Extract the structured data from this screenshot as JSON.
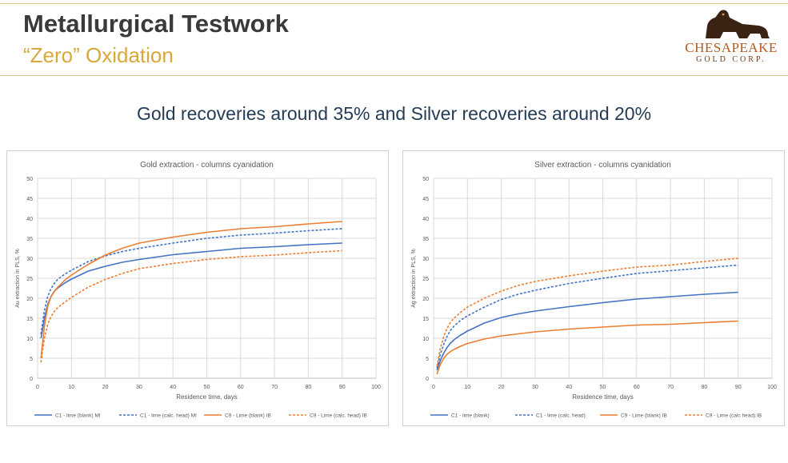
{
  "header": {
    "title": "Metallurgical Testwork",
    "subtitle": "“Zero” Oxidation"
  },
  "logo": {
    "name": "CHESAPEAKE",
    "corp": "GOLD CORP.",
    "icon": "dog-icon",
    "text_color": "#b25a1e"
  },
  "headline": "Gold recoveries around 35% and Silver recoveries around 20%",
  "chart_data": [
    {
      "type": "line",
      "title": "Gold extraction - columns cyanidation",
      "xlabel": "Residence time, days",
      "ylabel": "Au extraction in PLS, %",
      "xlim": [
        0,
        100
      ],
      "ylim": [
        0,
        50
      ],
      "xticks": [
        "0",
        "10",
        "20",
        "30",
        "40",
        "50",
        "60",
        "70",
        "80",
        "90",
        "100"
      ],
      "yticks": [
        "0",
        "5",
        "10",
        "15",
        "20",
        "25",
        "30",
        "35",
        "40",
        "45",
        "50"
      ],
      "grid": true,
      "legend_position": "bottom",
      "series": [
        {
          "name": "C1 - lime (blank) MI",
          "color": "#4472c4",
          "dash": false,
          "x": [
            1,
            2,
            3,
            4,
            5,
            6,
            8,
            10,
            15,
            20,
            25,
            30,
            40,
            50,
            60,
            70,
            80,
            90
          ],
          "y": [
            10,
            15,
            18.5,
            20.5,
            21.8,
            22.6,
            23.8,
            24.8,
            26.8,
            28,
            29,
            29.7,
            30.9,
            31.7,
            32.5,
            32.9,
            33.4,
            33.8
          ]
        },
        {
          "name": "C1 - lime (calc. head) MI",
          "color": "#4472c4",
          "dash": true,
          "x": [
            1,
            2,
            3,
            4,
            5,
            6,
            8,
            10,
            15,
            20,
            25,
            30,
            40,
            50,
            60,
            70,
            80,
            90
          ],
          "y": [
            11,
            17,
            20.5,
            22.5,
            23.8,
            24.8,
            26,
            27,
            29.2,
            30.6,
            31.7,
            32.5,
            33.8,
            35,
            35.8,
            36.3,
            36.9,
            37.4
          ]
        },
        {
          "name": "C9 - Lime (blank) IB",
          "color": "#ed7d31",
          "dash": false,
          "x": [
            1,
            2,
            3,
            4,
            5,
            6,
            8,
            10,
            15,
            20,
            25,
            30,
            40,
            50,
            60,
            70,
            80,
            90
          ],
          "y": [
            5,
            13,
            18,
            20.5,
            21.8,
            22.8,
            24.5,
            25.8,
            28.5,
            30.8,
            32.5,
            33.8,
            35.3,
            36.5,
            37.4,
            37.9,
            38.6,
            39.2
          ]
        },
        {
          "name": "C9 - Lime (calc. head) IB",
          "color": "#ed7d31",
          "dash": true,
          "x": [
            1,
            2,
            3,
            4,
            5,
            6,
            8,
            10,
            15,
            20,
            25,
            30,
            40,
            50,
            60,
            70,
            80,
            90
          ],
          "y": [
            4,
            10,
            13.5,
            15.5,
            16.8,
            17.7,
            19,
            20.2,
            22.8,
            24.7,
            26.2,
            27.4,
            28.7,
            29.7,
            30.4,
            30.8,
            31.4,
            31.9
          ]
        }
      ]
    },
    {
      "type": "line",
      "title": "Silver extraction - columns cyanidation",
      "xlabel": "Residence time, days",
      "ylabel": "Ag extraction in PLS, %",
      "xlim": [
        0,
        100
      ],
      "ylim": [
        0,
        50
      ],
      "xticks": [
        "0",
        "10",
        "20",
        "30",
        "40",
        "50",
        "60",
        "70",
        "80",
        "90",
        "100"
      ],
      "yticks": [
        "0",
        "5",
        "10",
        "15",
        "20",
        "25",
        "30",
        "35",
        "40",
        "45",
        "50"
      ],
      "grid": true,
      "legend_position": "bottom",
      "series": [
        {
          "name": "C1 - lime (blank)",
          "color": "#4472c4",
          "dash": false,
          "x": [
            1,
            2,
            3,
            4,
            5,
            6,
            8,
            10,
            15,
            20,
            25,
            30,
            40,
            50,
            60,
            70,
            80,
            90
          ],
          "y": [
            2,
            4.5,
            6.3,
            7.7,
            8.8,
            9.6,
            10.8,
            11.8,
            13.8,
            15.2,
            16.1,
            16.8,
            17.9,
            18.9,
            19.8,
            20.4,
            21,
            21.5
          ]
        },
        {
          "name": "C1 - lime (calc. head)",
          "color": "#4472c4",
          "dash": true,
          "x": [
            1,
            2,
            3,
            4,
            5,
            6,
            8,
            10,
            15,
            20,
            25,
            30,
            40,
            50,
            60,
            70,
            80,
            90
          ],
          "y": [
            2.5,
            6,
            8.5,
            10.5,
            12,
            13,
            14.5,
            15.6,
            17.8,
            19.7,
            21,
            22,
            23.7,
            25,
            26.2,
            26.9,
            27.6,
            28.3
          ]
        },
        {
          "name": "C9 - Lime (blank) IB",
          "color": "#ed7d31",
          "dash": false,
          "x": [
            1,
            2,
            3,
            4,
            5,
            6,
            8,
            10,
            15,
            20,
            25,
            30,
            40,
            50,
            60,
            70,
            80,
            90
          ],
          "y": [
            1,
            3.5,
            5,
            6,
            6.7,
            7.2,
            8,
            8.7,
            9.8,
            10.6,
            11.1,
            11.6,
            12.3,
            12.8,
            13.3,
            13.5,
            13.9,
            14.3
          ]
        },
        {
          "name": "C9 - Lime (calc head) IB",
          "color": "#ed7d31",
          "dash": true,
          "x": [
            1,
            2,
            3,
            4,
            5,
            6,
            8,
            10,
            15,
            20,
            25,
            30,
            40,
            50,
            60,
            70,
            80,
            90
          ],
          "y": [
            3,
            7.5,
            10.5,
            12.5,
            14,
            15,
            16.5,
            17.8,
            20,
            21.8,
            23.2,
            24.2,
            25.6,
            26.8,
            27.8,
            28.3,
            29.2,
            30
          ]
        }
      ]
    }
  ]
}
